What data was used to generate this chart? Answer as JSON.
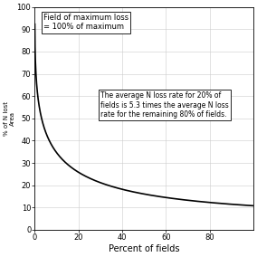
{
  "title": "",
  "xlabel": "Percent of fields",
  "ylabel": "% of N lost\nArea",
  "xlim": [
    0,
    100
  ],
  "ylim": [
    0,
    100
  ],
  "xticks": [
    0,
    20,
    40,
    60,
    80
  ],
  "yticks": [
    0,
    10,
    20,
    30,
    40,
    50,
    60,
    70,
    80,
    90,
    100
  ],
  "annotation1_text": "Field of maximum loss\n= 100% of maximum",
  "annotation2_text": "The average N loss rate for 20% of\nfields is 5.3 times the average N loss\nrate for the remaining 80% of fields.",
  "curve_color": "#000000",
  "background_color": "#ffffff",
  "grid_color": "#cccccc",
  "alpha": 0.38,
  "decay": 2.8
}
